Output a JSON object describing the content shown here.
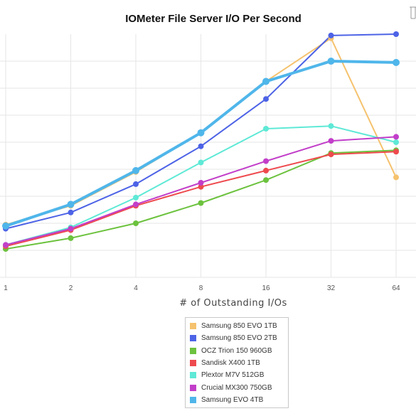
{
  "chart_data": {
    "type": "line",
    "title": "IOMeter File Server I/O Per Second",
    "xlabel": "# of Outstanding I/Os",
    "ylabel": "",
    "x": [
      "1",
      "2",
      "4",
      "8",
      "16",
      "32",
      "64"
    ],
    "ylim": [
      0,
      100
    ],
    "grid": true,
    "legend_position": "bottom",
    "series": [
      {
        "name": "Samsung 850 EVO 1TB",
        "color": "#f5c26e",
        "values": [
          19.5,
          26.5,
          39,
          53.5,
          72.5,
          88.5,
          37
        ]
      },
      {
        "name": "Samsung 850 EVO 2TB",
        "color": "#4d63e6",
        "values": [
          18,
          24,
          34.5,
          48.5,
          66,
          89.5,
          90
        ]
      },
      {
        "name": "OCZ Trion 150 960GB",
        "color": "#6cc23e",
        "values": [
          10.5,
          14.5,
          20,
          27.5,
          36,
          46,
          47
        ]
      },
      {
        "name": "Sandisk X400 1TB",
        "color": "#ee4a4e",
        "values": [
          11.5,
          17.5,
          26.5,
          33.5,
          39.5,
          45.5,
          46.5
        ]
      },
      {
        "name": "Plextor M7V 512GB",
        "color": "#5ee9d6",
        "values": [
          12,
          18.5,
          29.5,
          42.5,
          55,
          56,
          50
        ]
      },
      {
        "name": "Crucial MX300 750GB",
        "color": "#c23ec9",
        "values": [
          12,
          18,
          27,
          35,
          43,
          50.5,
          52
        ]
      },
      {
        "name": "Samsung EVO 4TB",
        "color": "#4fb6ea",
        "values": [
          19,
          27,
          39.5,
          53.5,
          72.5,
          80,
          79.5
        ]
      }
    ]
  }
}
